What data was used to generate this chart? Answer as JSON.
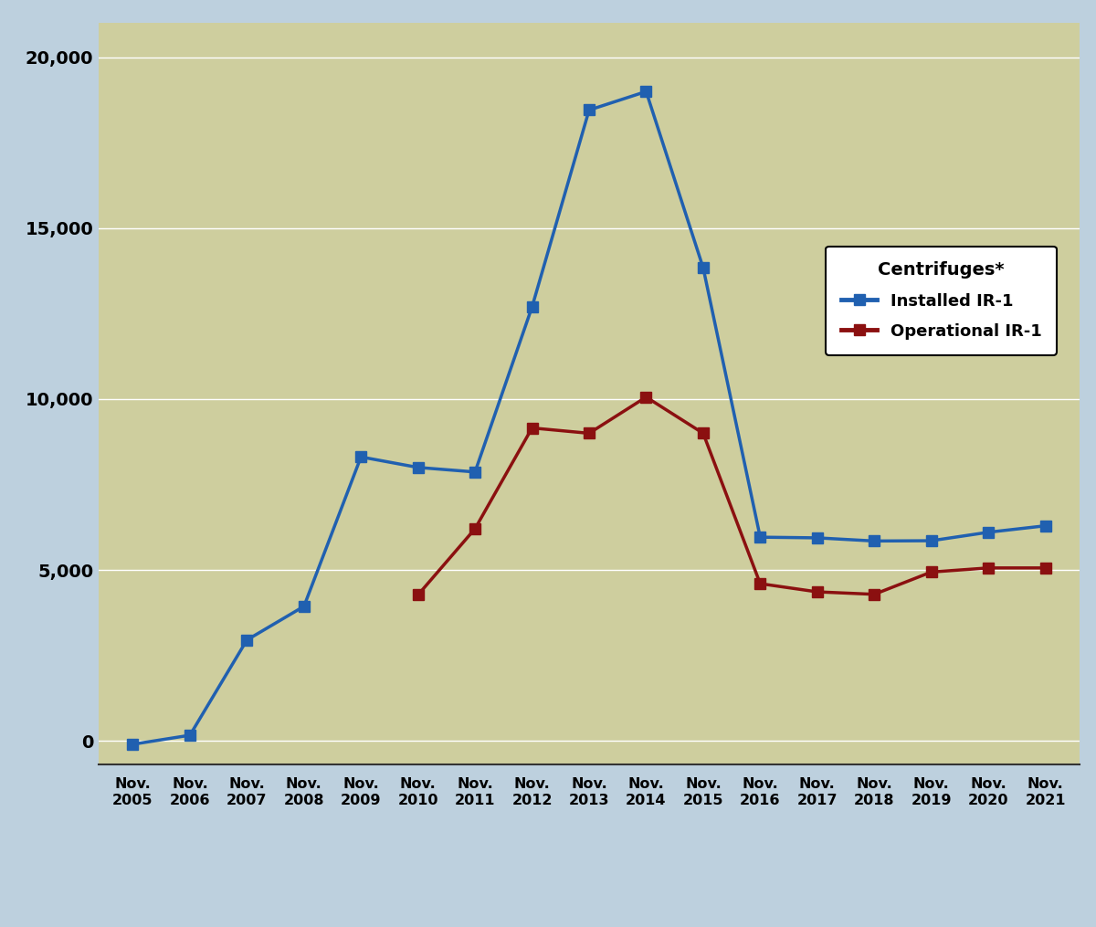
{
  "years": [
    2005,
    2006,
    2007,
    2008,
    2009,
    2010,
    2011,
    2012,
    2013,
    2014,
    2015,
    2016,
    2017,
    2018,
    2019,
    2020,
    2021
  ],
  "installed_ir1": [
    -100,
    164,
    2952,
    3936,
    8308,
    8000,
    7868,
    12699,
    18458,
    19000,
    13843,
    5960,
    5940,
    5848,
    5856,
    6104,
    6293
  ],
  "operational_ir1": [
    null,
    null,
    null,
    null,
    null,
    4272,
    6208,
    9156,
    9000,
    10060,
    9000,
    4600,
    4360,
    4288,
    4940,
    5060,
    5060
  ],
  "installed_color": "#2060B0",
  "operational_color": "#8B1010",
  "background_plot": "#CECE9E",
  "background_figure": "#BDD0DE",
  "ylim": [
    -700,
    21000
  ],
  "yticks": [
    0,
    5000,
    10000,
    15000,
    20000
  ],
  "xlim_min": 2004.4,
  "xlim_max": 2021.6,
  "legend_title": "Centrifuges*",
  "legend_installed": "Installed IR-1",
  "legend_operational": "Operational IR-1",
  "grid_color": "#FFFFFF",
  "line_width": 2.5,
  "marker_size": 8
}
